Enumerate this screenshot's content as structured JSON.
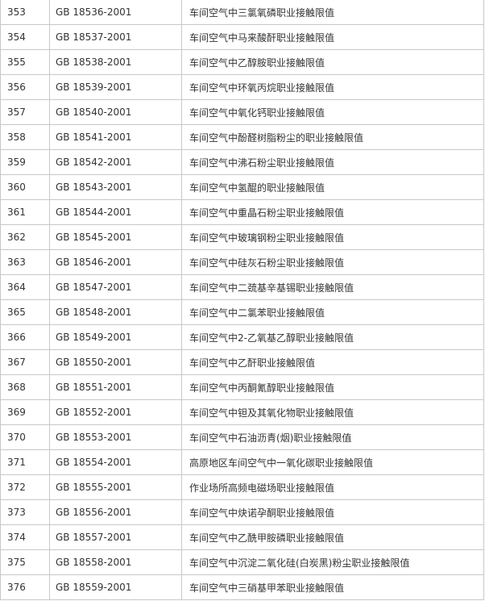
{
  "table": {
    "rows": [
      [
        "353",
        "GB 18536-2001",
        "车间空气中三氯氧磷职业接触限值"
      ],
      [
        "354",
        "GB 18537-2001",
        "车间空气中马来酸酐职业接触限值"
      ],
      [
        "355",
        "GB 18538-2001",
        "车间空气中乙醇胺职业接触限值"
      ],
      [
        "356",
        "GB 18539-2001",
        "车间空气中环氧丙烷职业接触限值"
      ],
      [
        "357",
        "GB 18540-2001",
        "车间空气中氧化钙职业接触限值"
      ],
      [
        "358",
        "GB 18541-2001",
        "车间空气中酚醛树脂粉尘的职业接触限值"
      ],
      [
        "359",
        "GB 18542-2001",
        "车间空气中沸石粉尘职业接触限值"
      ],
      [
        "360",
        "GB 18543-2001",
        "车间空气中氢醌的职业接触限值"
      ],
      [
        "361",
        "GB 18544-2001",
        "车间空气中重晶石粉尘职业接触限值"
      ],
      [
        "362",
        "GB 18545-2001",
        "车间空气中玻璃钢粉尘职业接触限值"
      ],
      [
        "363",
        "GB 18546-2001",
        "车间空气中硅灰石粉尘职业接触限值"
      ],
      [
        "364",
        "GB 18547-2001",
        "车间空气中二巯基辛基锡职业接触限值"
      ],
      [
        "365",
        "GB 18548-2001",
        "车间空气中二氯苯职业接触限值"
      ],
      [
        "366",
        "GB 18549-2001",
        "车间空气中2-乙氧基乙醇职业接触限值"
      ],
      [
        "367",
        "GB 18550-2001",
        "车间空气中乙酐职业接触限值"
      ],
      [
        "368",
        "GB 18551-2001",
        "车间空气中丙酮氰醇职业接触限值"
      ],
      [
        "369",
        "GB 18552-2001",
        "车间空气中钽及其氧化物职业接触限值"
      ],
      [
        "370",
        "GB 18553-2001",
        "车间空气中石油沥青(烟)职业接触限值"
      ],
      [
        "371",
        "GB 18554-2001",
        "高原地区车间空气中一氧化碳职业接触限值"
      ],
      [
        "372",
        "GB 18555-2001",
        "作业场所高频电磁场职业接触限值"
      ],
      [
        "373",
        "GB 18556-2001",
        "车间空气中炔诺孕酮职业接触限值"
      ],
      [
        "374",
        "GB 18557-2001",
        "车间空气中乙酰甲胺磷职业接触限值"
      ],
      [
        "375",
        "GB 18558-2001",
        "车间空气中沉淀二氧化硅(白炭黑)粉尘职业接触限值"
      ],
      [
        "376",
        "GB 18559-2001",
        "车间空气中三硝基甲苯职业接触限值"
      ]
    ]
  }
}
